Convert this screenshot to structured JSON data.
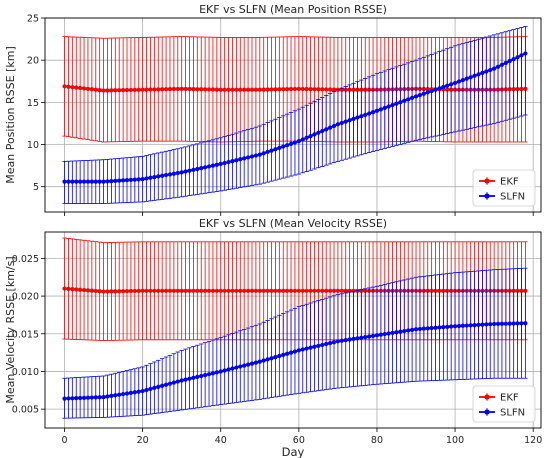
{
  "chart_data": [
    {
      "type": "line",
      "title": "EKF vs SLFN (Mean Position RSSE)",
      "ylabel": "Mean Position RSSE [km]",
      "xlabel": "",
      "xlim": [
        -5,
        122
      ],
      "ylim": [
        2,
        25
      ],
      "xticks": [
        0,
        20,
        40,
        60,
        80,
        100,
        120
      ],
      "yticks": [
        5,
        10,
        15,
        20,
        25
      ],
      "ytick_labels": [
        "5",
        "10",
        "15",
        "20",
        "25"
      ],
      "show_xtick_labels": false,
      "grid": true,
      "legend": "lower-right",
      "x": [
        0,
        10,
        20,
        30,
        40,
        50,
        60,
        70,
        80,
        90,
        100,
        110,
        118
      ],
      "series": [
        {
          "name": "EKF",
          "color": "#ff0000",
          "values": [
            16.9,
            16.4,
            16.5,
            16.6,
            16.5,
            16.5,
            16.6,
            16.5,
            16.5,
            16.6,
            16.5,
            16.5,
            16.6
          ],
          "err_low": [
            11.0,
            10.3,
            10.4,
            10.4,
            10.3,
            10.4,
            10.4,
            10.3,
            10.3,
            10.4,
            10.3,
            10.3,
            10.3
          ],
          "err_high": [
            22.8,
            22.6,
            22.7,
            22.8,
            22.7,
            22.7,
            22.8,
            22.7,
            22.7,
            22.7,
            22.7,
            22.7,
            22.8
          ]
        },
        {
          "name": "SLFN",
          "color": "#0000ff",
          "values": [
            5.6,
            5.6,
            5.9,
            6.7,
            7.7,
            8.8,
            10.4,
            12.4,
            14.0,
            15.7,
            17.3,
            19.0,
            20.8
          ],
          "err_low": [
            3.0,
            3.0,
            3.2,
            3.8,
            4.5,
            5.3,
            6.5,
            8.0,
            9.3,
            10.5,
            11.5,
            12.5,
            13.5
          ],
          "err_high": [
            8.0,
            8.2,
            8.6,
            9.6,
            10.8,
            12.2,
            14.2,
            16.5,
            18.4,
            20.0,
            21.7,
            23.0,
            24.0
          ]
        }
      ]
    },
    {
      "type": "line",
      "title": "EKF vs SLFN (Mean Velocity RSSE)",
      "ylabel": "Mean Velocity RSSE [km/s]",
      "xlabel": "Day",
      "xlim": [
        -5,
        122
      ],
      "ylim": [
        0.0025,
        0.0285
      ],
      "xticks": [
        0,
        20,
        40,
        60,
        80,
        100,
        120
      ],
      "yticks": [
        0.005,
        0.01,
        0.015,
        0.02,
        0.025
      ],
      "ytick_labels": [
        "0.005",
        "0.010",
        "0.015",
        "0.020",
        "0.025"
      ],
      "show_xtick_labels": true,
      "grid": true,
      "legend": "lower-right",
      "x": [
        0,
        10,
        20,
        30,
        40,
        50,
        60,
        70,
        80,
        90,
        100,
        110,
        118
      ],
      "series": [
        {
          "name": "EKF",
          "color": "#ff0000",
          "values": [
            0.021,
            0.0206,
            0.0207,
            0.0207,
            0.0207,
            0.0207,
            0.0207,
            0.0207,
            0.0207,
            0.0207,
            0.0207,
            0.0207,
            0.0207
          ],
          "err_low": [
            0.0143,
            0.0141,
            0.0142,
            0.0142,
            0.0142,
            0.0142,
            0.0142,
            0.0142,
            0.0142,
            0.0142,
            0.0142,
            0.0142,
            0.0142
          ],
          "err_high": [
            0.0277,
            0.0271,
            0.0272,
            0.0272,
            0.0272,
            0.0272,
            0.0272,
            0.0272,
            0.0272,
            0.0272,
            0.0272,
            0.0272,
            0.0272
          ]
        },
        {
          "name": "SLFN",
          "color": "#0000ff",
          "values": [
            0.0064,
            0.0066,
            0.0074,
            0.0088,
            0.01,
            0.0113,
            0.0128,
            0.014,
            0.0148,
            0.0156,
            0.016,
            0.0163,
            0.0164
          ],
          "err_low": [
            0.0038,
            0.0039,
            0.0042,
            0.0049,
            0.0056,
            0.0063,
            0.0071,
            0.0078,
            0.0083,
            0.0087,
            0.0089,
            0.0091,
            0.0091
          ],
          "err_high": [
            0.0091,
            0.0094,
            0.0106,
            0.0128,
            0.0145,
            0.0163,
            0.0186,
            0.0202,
            0.0213,
            0.0225,
            0.0231,
            0.0235,
            0.0237
          ]
        }
      ]
    }
  ]
}
